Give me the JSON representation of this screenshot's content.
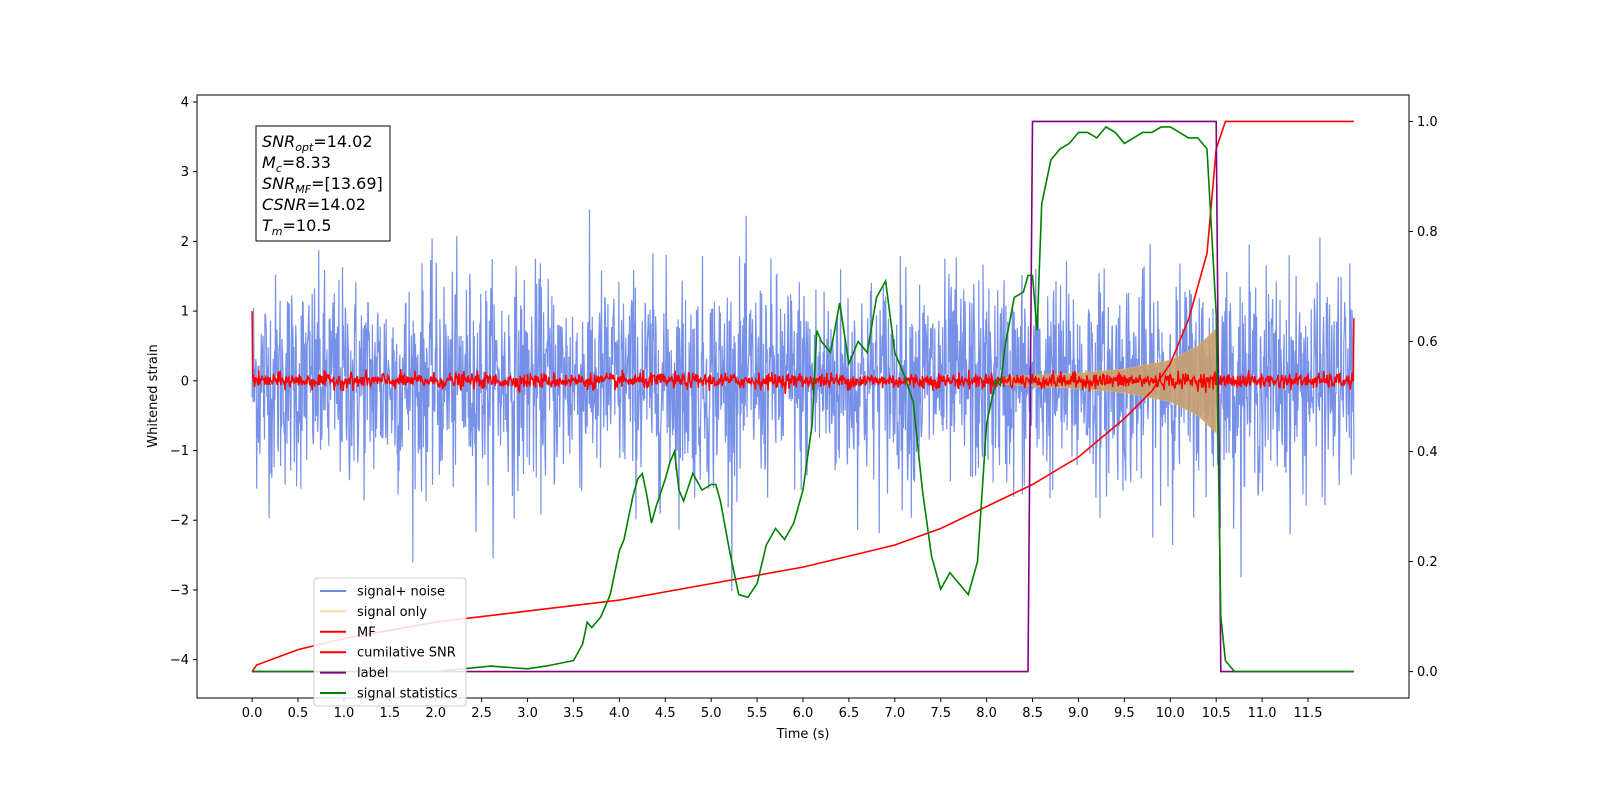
{
  "chart_data": {
    "type": "line",
    "xlabel": "Time (s)",
    "ylabel": "Whitened strain",
    "xlim": [
      -0.6,
      12.6
    ],
    "ylim": [
      -4.55,
      4.1
    ],
    "y2lim": [
      -0.048,
      1.048
    ],
    "xticks": [
      "0.0",
      "0.5",
      "1.0",
      "1.5",
      "2.0",
      "2.5",
      "3.0",
      "3.5",
      "4.0",
      "4.5",
      "5.0",
      "5.5",
      "6.0",
      "6.5",
      "7.0",
      "7.5",
      "8.0",
      "8.5",
      "9.0",
      "9.5",
      "10.0",
      "10.5",
      "11.0",
      "11.5"
    ],
    "yticks": [
      "4",
      "3",
      "2",
      "1",
      "0",
      "−1",
      "−2",
      "−3",
      "−4"
    ],
    "y2ticks": [
      "1.0",
      "0.8",
      "0.6",
      "0.4",
      "0.2",
      "0.0"
    ],
    "annotation": [
      {
        "main": "SNR",
        "sub": "opt",
        "value": "=14.02"
      },
      {
        "main": "M",
        "sub": "c",
        "value": "=8.33"
      },
      {
        "main": "SNR",
        "sub": "MF",
        "value": "=[13.69]"
      },
      {
        "main": "CSNR",
        "sub": "",
        "value": "=14.02"
      },
      {
        "main": "T",
        "sub": "m",
        "value": "=10.5"
      }
    ],
    "legend": [
      "signal+ noise",
      "signal only",
      "MF",
      "cumilative SNR",
      "label",
      "signal statistics"
    ],
    "legend_position": "lower-left",
    "series": [
      {
        "name": "signal+ noise",
        "color": "#6b88e6",
        "axis": "left",
        "description_type": "noise",
        "x_range": [
          0,
          12
        ],
        "amplitude_sd": 0.75
      },
      {
        "name": "signal only",
        "color": "#f5c242",
        "axis": "left",
        "envelope": {
          "x": [
            8.2,
            8.5,
            9.0,
            9.5,
            10.0,
            10.3,
            10.5
          ],
          "amp": [
            0.05,
            0.08,
            0.11,
            0.17,
            0.3,
            0.5,
            0.75
          ]
        }
      },
      {
        "name": "MF",
        "color": "#ff0000",
        "axis": "left",
        "x_range": [
          0,
          12
        ],
        "amplitude": 0.08
      },
      {
        "name": "cumilative SNR",
        "color": "#ff0000",
        "axis": "right",
        "x": [
          0.0,
          0.05,
          0.5,
          1.0,
          1.5,
          2.0,
          3.0,
          4.0,
          5.0,
          6.0,
          6.5,
          7.0,
          7.5,
          8.0,
          8.5,
          9.0,
          9.5,
          9.8,
          10.0,
          10.2,
          10.4,
          10.5,
          10.6,
          12.0
        ],
        "y": [
          0.0,
          0.012,
          0.04,
          0.06,
          0.075,
          0.09,
          0.11,
          0.13,
          0.16,
          0.19,
          0.21,
          0.23,
          0.26,
          0.3,
          0.34,
          0.39,
          0.46,
          0.51,
          0.56,
          0.64,
          0.76,
          0.95,
          1.0,
          1.0
        ]
      },
      {
        "name": "label",
        "color": "#800080",
        "axis": "right",
        "x": [
          0.0,
          8.45,
          8.5,
          10.5,
          10.55,
          10.6,
          12.0
        ],
        "y": [
          0.0,
          0.0,
          1.0,
          1.0,
          0.0,
          0.0,
          0.0
        ]
      },
      {
        "name": "signal statistics",
        "color": "#008000",
        "axis": "right",
        "x": [
          0.0,
          2.0,
          2.3,
          2.6,
          3.0,
          3.2,
          3.5,
          3.6,
          3.65,
          3.7,
          3.8,
          3.9,
          4.0,
          4.05,
          4.1,
          4.15,
          4.2,
          4.25,
          4.3,
          4.35,
          4.4,
          4.5,
          4.55,
          4.6,
          4.65,
          4.7,
          4.8,
          4.9,
          5.0,
          5.05,
          5.1,
          5.2,
          5.3,
          5.4,
          5.5,
          5.6,
          5.7,
          5.8,
          5.9,
          6.0,
          6.1,
          6.15,
          6.2,
          6.3,
          6.4,
          6.5,
          6.6,
          6.7,
          6.8,
          6.9,
          7.0,
          7.1,
          7.2,
          7.3,
          7.4,
          7.5,
          7.6,
          7.7,
          7.8,
          7.9,
          8.0,
          8.1,
          8.15,
          8.2,
          8.3,
          8.4,
          8.45,
          8.5,
          8.55,
          8.6,
          8.7,
          8.8,
          8.9,
          9.0,
          9.1,
          9.2,
          9.3,
          9.4,
          9.5,
          9.6,
          9.7,
          9.8,
          9.9,
          10.0,
          10.1,
          10.2,
          10.3,
          10.4,
          10.5,
          10.55,
          10.6,
          10.7,
          12.0
        ],
        "y": [
          0.0,
          0.0,
          0.005,
          0.01,
          0.005,
          0.01,
          0.02,
          0.05,
          0.09,
          0.08,
          0.1,
          0.14,
          0.22,
          0.24,
          0.28,
          0.32,
          0.35,
          0.36,
          0.32,
          0.27,
          0.3,
          0.35,
          0.38,
          0.4,
          0.33,
          0.31,
          0.36,
          0.33,
          0.34,
          0.34,
          0.31,
          0.22,
          0.14,
          0.135,
          0.16,
          0.23,
          0.26,
          0.24,
          0.27,
          0.33,
          0.45,
          0.62,
          0.6,
          0.58,
          0.67,
          0.56,
          0.6,
          0.58,
          0.68,
          0.71,
          0.58,
          0.54,
          0.49,
          0.33,
          0.21,
          0.15,
          0.18,
          0.16,
          0.14,
          0.2,
          0.45,
          0.53,
          0.52,
          0.59,
          0.68,
          0.69,
          0.72,
          0.72,
          0.62,
          0.85,
          0.93,
          0.95,
          0.96,
          0.98,
          0.98,
          0.97,
          0.99,
          0.98,
          0.96,
          0.97,
          0.98,
          0.98,
          0.99,
          0.99,
          0.98,
          0.97,
          0.97,
          0.95,
          0.65,
          0.1,
          0.02,
          0.0,
          0.0
        ]
      }
    ]
  }
}
